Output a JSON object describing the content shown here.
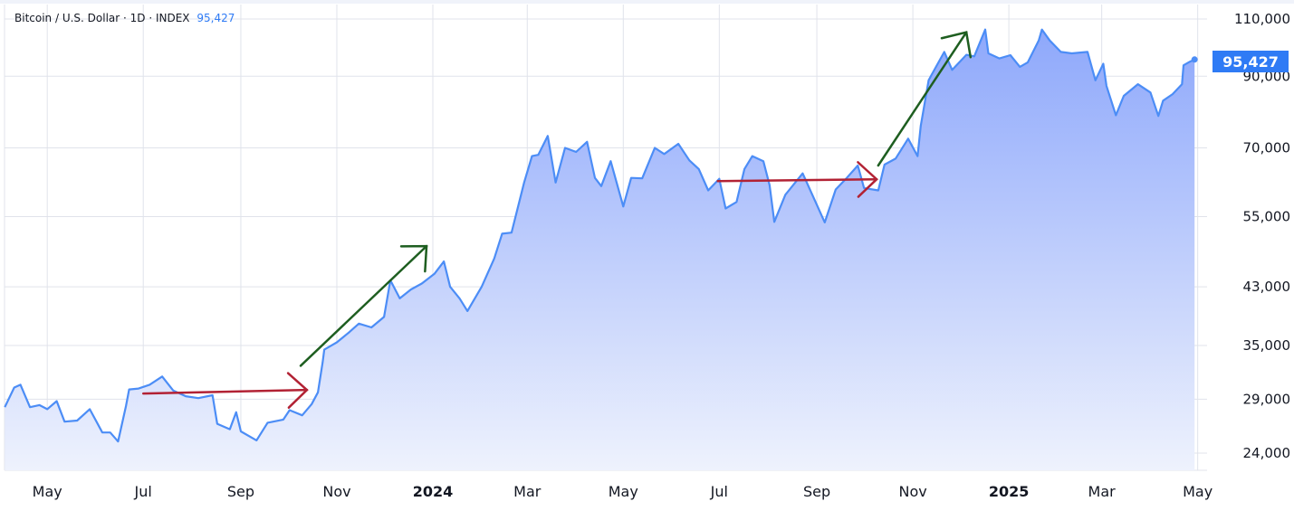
{
  "legend": {
    "symbol": "Bitcoin / U.S. Dollar · 1D · INDEX",
    "last_value": "95,427"
  },
  "colors": {
    "line": "#4c8df6",
    "fill_top": "#8ea8fb",
    "fill_bottom": "#eef2fd",
    "price_tag": "#2f7bf5",
    "grid": "#e0e3eb",
    "arrow_red": "#b22234",
    "arrow_green": "#1e5e20"
  },
  "chart_data": {
    "type": "area",
    "title": "",
    "xlabel": "",
    "ylabel": "",
    "y_scale": "log",
    "ylim": [
      22600,
      115000
    ],
    "grid": true,
    "y_ticks": [
      24000,
      29000,
      35000,
      43000,
      55000,
      70000,
      90000,
      110000
    ],
    "y_tick_labels": [
      "24,000",
      "29,000",
      "35,000",
      "43,000",
      "55,000",
      "70,000",
      "90,000",
      "110,000"
    ],
    "x_ticks": [
      {
        "date": "2023-05-01",
        "label": "May"
      },
      {
        "date": "2023-07-01",
        "label": "Jul"
      },
      {
        "date": "2023-09-01",
        "label": "Sep"
      },
      {
        "date": "2023-11-01",
        "label": "Nov"
      },
      {
        "date": "2024-01-01",
        "label": "2024",
        "year": true
      },
      {
        "date": "2024-03-01",
        "label": "Mar"
      },
      {
        "date": "2024-05-01",
        "label": "May"
      },
      {
        "date": "2024-07-01",
        "label": "Jul"
      },
      {
        "date": "2024-09-01",
        "label": "Sep"
      },
      {
        "date": "2024-11-01",
        "label": "Nov"
      },
      {
        "date": "2025-01-01",
        "label": "2025",
        "year": true
      },
      {
        "date": "2025-03-01",
        "label": "Mar"
      },
      {
        "date": "2025-05-01",
        "label": "May"
      }
    ],
    "last_price_label": "95,427",
    "series": [
      {
        "points": [
          [
            "2023-04-04",
            28200
          ],
          [
            "2023-04-10",
            30200
          ],
          [
            "2023-04-14",
            30500
          ],
          [
            "2023-04-20",
            28200
          ],
          [
            "2023-04-26",
            28400
          ],
          [
            "2023-05-01",
            28000
          ],
          [
            "2023-05-07",
            28800
          ],
          [
            "2023-05-12",
            26800
          ],
          [
            "2023-05-20",
            26900
          ],
          [
            "2023-05-28",
            28000
          ],
          [
            "2023-06-05",
            25800
          ],
          [
            "2023-06-10",
            25800
          ],
          [
            "2023-06-15",
            25000
          ],
          [
            "2023-06-20",
            28300
          ],
          [
            "2023-06-22",
            30000
          ],
          [
            "2023-06-28",
            30100
          ],
          [
            "2023-07-05",
            30500
          ],
          [
            "2023-07-13",
            31400
          ],
          [
            "2023-07-20",
            29900
          ],
          [
            "2023-07-28",
            29300
          ],
          [
            "2023-08-05",
            29100
          ],
          [
            "2023-08-14",
            29400
          ],
          [
            "2023-08-17",
            26600
          ],
          [
            "2023-08-25",
            26100
          ],
          [
            "2023-08-29",
            27700
          ],
          [
            "2023-09-01",
            25900
          ],
          [
            "2023-09-11",
            25100
          ],
          [
            "2023-09-18",
            26700
          ],
          [
            "2023-09-28",
            27000
          ],
          [
            "2023-10-02",
            27900
          ],
          [
            "2023-10-10",
            27400
          ],
          [
            "2023-10-16",
            28500
          ],
          [
            "2023-10-20",
            29700
          ],
          [
            "2023-10-23",
            33000
          ],
          [
            "2023-10-24",
            34500
          ],
          [
            "2023-11-01",
            35400
          ],
          [
            "2023-11-09",
            36700
          ],
          [
            "2023-11-15",
            37800
          ],
          [
            "2023-11-23",
            37300
          ],
          [
            "2023-12-01",
            38700
          ],
          [
            "2023-12-05",
            44000
          ],
          [
            "2023-12-11",
            41300
          ],
          [
            "2023-12-18",
            42600
          ],
          [
            "2023-12-25",
            43500
          ],
          [
            "2024-01-02",
            45000
          ],
          [
            "2024-01-08",
            47000
          ],
          [
            "2024-01-12",
            43000
          ],
          [
            "2024-01-18",
            41300
          ],
          [
            "2024-01-23",
            39500
          ],
          [
            "2024-02-01",
            43000
          ],
          [
            "2024-02-09",
            47500
          ],
          [
            "2024-02-14",
            51800
          ],
          [
            "2024-02-20",
            52000
          ],
          [
            "2024-02-28",
            62000
          ],
          [
            "2024-03-04",
            68000
          ],
          [
            "2024-03-08",
            68300
          ],
          [
            "2024-03-14",
            73000
          ],
          [
            "2024-03-19",
            62000
          ],
          [
            "2024-03-25",
            70000
          ],
          [
            "2024-04-01",
            69000
          ],
          [
            "2024-04-08",
            71500
          ],
          [
            "2024-04-13",
            63000
          ],
          [
            "2024-04-17",
            61200
          ],
          [
            "2024-04-23",
            66800
          ],
          [
            "2024-05-01",
            57000
          ],
          [
            "2024-05-06",
            63000
          ],
          [
            "2024-05-13",
            62900
          ],
          [
            "2024-05-21",
            70000
          ],
          [
            "2024-05-27",
            68500
          ],
          [
            "2024-06-05",
            71000
          ],
          [
            "2024-06-12",
            67000
          ],
          [
            "2024-06-18",
            65000
          ],
          [
            "2024-06-24",
            60300
          ],
          [
            "2024-07-01",
            62800
          ],
          [
            "2024-07-05",
            56600
          ],
          [
            "2024-07-12",
            57900
          ],
          [
            "2024-07-17",
            65000
          ],
          [
            "2024-07-22",
            68000
          ],
          [
            "2024-07-29",
            66800
          ],
          [
            "2024-08-02",
            61400
          ],
          [
            "2024-08-05",
            54000
          ],
          [
            "2024-08-12",
            59400
          ],
          [
            "2024-08-23",
            64000
          ],
          [
            "2024-09-01",
            57300
          ],
          [
            "2024-09-06",
            53900
          ],
          [
            "2024-09-13",
            60500
          ],
          [
            "2024-09-20",
            63000
          ],
          [
            "2024-09-27",
            65800
          ],
          [
            "2024-10-01",
            60800
          ],
          [
            "2024-10-10",
            60300
          ],
          [
            "2024-10-14",
            66000
          ],
          [
            "2024-10-21",
            67400
          ],
          [
            "2024-10-29",
            72300
          ],
          [
            "2024-11-04",
            68000
          ],
          [
            "2024-11-06",
            75600
          ],
          [
            "2024-11-11",
            88700
          ],
          [
            "2024-11-13",
            90500
          ],
          [
            "2024-11-21",
            98000
          ],
          [
            "2024-11-26",
            92000
          ],
          [
            "2024-12-05",
            97000
          ],
          [
            "2024-12-10",
            96500
          ],
          [
            "2024-12-17",
            106000
          ],
          [
            "2024-12-19",
            97500
          ],
          [
            "2024-12-26",
            95800
          ],
          [
            "2025-01-02",
            96900
          ],
          [
            "2025-01-08",
            93000
          ],
          [
            "2025-01-13",
            94500
          ],
          [
            "2025-01-20",
            102000
          ],
          [
            "2025-01-22",
            106000
          ],
          [
            "2025-01-27",
            102000
          ],
          [
            "2025-02-03",
            98000
          ],
          [
            "2025-02-10",
            97500
          ],
          [
            "2025-02-20",
            98000
          ],
          [
            "2025-02-25",
            88700
          ],
          [
            "2025-03-02",
            94000
          ],
          [
            "2025-03-04",
            87000
          ],
          [
            "2025-03-10",
            78500
          ],
          [
            "2025-03-15",
            84000
          ],
          [
            "2025-03-24",
            87500
          ],
          [
            "2025-04-01",
            85000
          ],
          [
            "2025-04-06",
            78300
          ],
          [
            "2025-04-09",
            82600
          ],
          [
            "2025-04-15",
            84500
          ],
          [
            "2025-04-21",
            87500
          ],
          [
            "2025-04-22",
            93500
          ],
          [
            "2025-04-26",
            94700
          ],
          [
            "2025-04-29",
            95427
          ]
        ]
      }
    ],
    "annotations": [
      {
        "type": "arrow",
        "color": "red",
        "from": [
          "2023-07-01",
          29580
        ],
        "to": [
          "2023-10-13",
          29950
        ]
      },
      {
        "type": "arrow",
        "color": "green",
        "from": [
          "2023-10-09",
          32600
        ],
        "to": [
          "2023-12-28",
          49600
        ]
      },
      {
        "type": "arrow",
        "color": "red",
        "from": [
          "2024-06-30",
          62300
        ],
        "to": [
          "2024-10-09",
          62700
        ]
      },
      {
        "type": "arrow",
        "color": "green",
        "from": [
          "2024-10-10",
          65800
        ],
        "to": [
          "2024-12-05",
          105000
        ]
      }
    ]
  }
}
